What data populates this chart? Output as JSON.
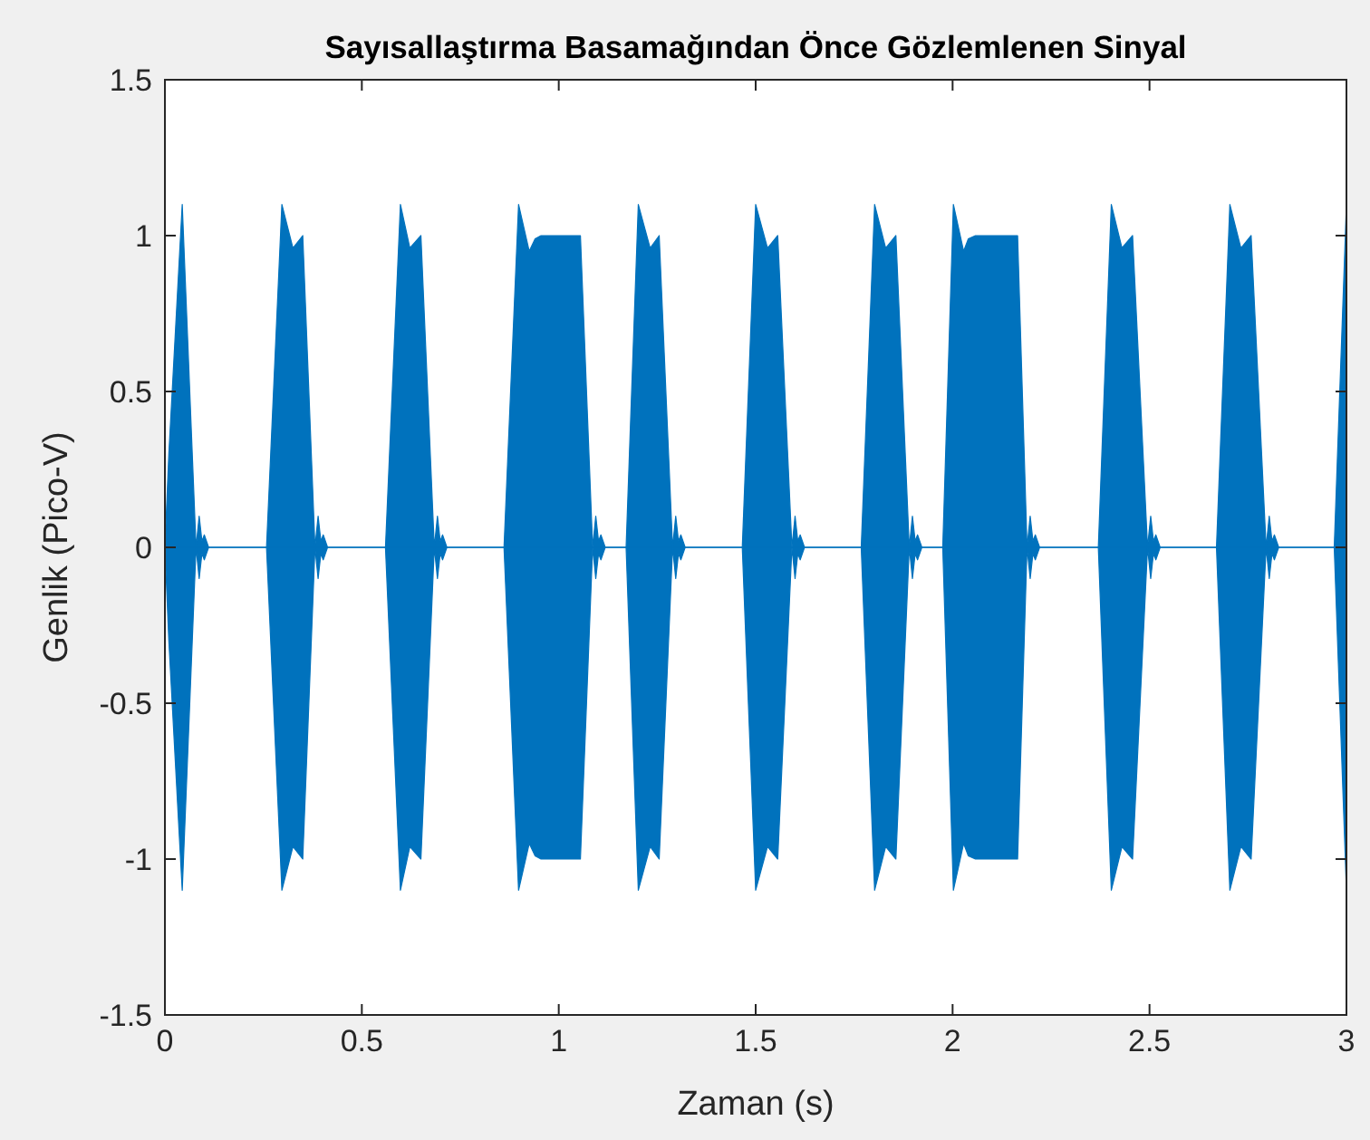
{
  "chart_data": {
    "type": "line",
    "title": "Sayısallaştırma Basamağından Önce Gözlemlenen Sinyal",
    "xlabel": "Zaman (s)",
    "ylabel": "Genlik (Pico-V)",
    "xlim": [
      0,
      3
    ],
    "ylim": [
      -1.5,
      1.5
    ],
    "xticks": [
      0,
      0.5,
      1,
      1.5,
      2,
      2.5,
      3
    ],
    "yticks": [
      -1.5,
      -1,
      -0.5,
      0,
      0.5,
      1,
      1.5
    ],
    "grid": false,
    "series": [
      {
        "color": "#0072bd",
        "x": [
          0,
          0.01,
          0.044,
          0.079,
          0.087,
          0.094,
          0.1,
          0.111,
          0.258,
          0.297,
          0.325,
          0.35,
          0.381,
          0.389,
          0.396,
          0.402,
          0.413,
          0.56,
          0.598,
          0.622,
          0.65,
          0.684,
          0.692,
          0.699,
          0.705,
          0.716,
          0.861,
          0.898,
          0.925,
          0.94,
          0.955,
          1.055,
          1.086,
          1.094,
          1.101,
          1.107,
          1.118,
          1.171,
          1.202,
          1.232,
          1.255,
          1.289,
          1.297,
          1.304,
          1.31,
          1.321,
          1.466,
          1.5,
          1.53,
          1.556,
          1.592,
          1.6,
          1.607,
          1.613,
          1.624,
          1.768,
          1.802,
          1.83,
          1.856,
          1.89,
          1.898,
          1.905,
          1.911,
          1.922,
          1.975,
          2.002,
          2.028,
          2.04,
          2.058,
          2.165,
          2.189,
          2.197,
          2.204,
          2.21,
          2.221,
          2.37,
          2.403,
          2.43,
          2.457,
          2.495,
          2.503,
          2.51,
          2.516,
          2.527,
          2.67,
          2.704,
          2.732,
          2.758,
          2.796,
          2.804,
          2.811,
          2.817,
          2.828,
          2.969,
          3
        ],
        "values": [
          0,
          0,
          0,
          0,
          0,
          0,
          0,
          0,
          0,
          0,
          0,
          0,
          0,
          0,
          0,
          0,
          0,
          0,
          0,
          0,
          0,
          0,
          0,
          0,
          0,
          0,
          0,
          0,
          0,
          0,
          0,
          0,
          0,
          0,
          0,
          0,
          0,
          0,
          0,
          0,
          0,
          0,
          0,
          0,
          0,
          0,
          0,
          0,
          0,
          0,
          0,
          0,
          0,
          0,
          0,
          0,
          0,
          0,
          0,
          0,
          0,
          0,
          0,
          0,
          0,
          0,
          0,
          0,
          0,
          0,
          0,
          0,
          0,
          0,
          0,
          0,
          0,
          0,
          0,
          0,
          0,
          0,
          0,
          0,
          0,
          0,
          0,
          0,
          0,
          0,
          0,
          0,
          0,
          0,
          0
        ],
        "upper": [
          0,
          0.3,
          1.1,
          0,
          0.1,
          0.02,
          0.04,
          0,
          0,
          1.1,
          0.96,
          1,
          0,
          0.1,
          0.02,
          0.04,
          0,
          0,
          1.1,
          0.96,
          1,
          0,
          0.1,
          0.02,
          0.04,
          0,
          0,
          1.1,
          0.95,
          0.99,
          1,
          1,
          0,
          0.1,
          0.02,
          0.04,
          0,
          0,
          1.1,
          0.96,
          1,
          0,
          0.1,
          0.02,
          0.04,
          0,
          0,
          1.1,
          0.96,
          1,
          0,
          0.1,
          0.02,
          0.04,
          0,
          0,
          1.1,
          0.96,
          1,
          0,
          0.1,
          0.02,
          0.04,
          0,
          0,
          1.1,
          0.95,
          0.99,
          1,
          1,
          0,
          0.1,
          0.02,
          0.04,
          0,
          0,
          1.1,
          0.96,
          1,
          0,
          0.1,
          0.02,
          0.04,
          0,
          0,
          1.1,
          0.96,
          1,
          0,
          0.1,
          0.02,
          0.04,
          0,
          0,
          1.1
        ],
        "lower": [
          0,
          -0.3,
          -1.1,
          0,
          -0.1,
          -0.02,
          -0.04,
          0,
          0,
          -1.1,
          -0.96,
          -1,
          0,
          -0.1,
          -0.02,
          -0.04,
          0,
          0,
          -1.1,
          -0.96,
          -1,
          0,
          -0.1,
          -0.02,
          -0.04,
          0,
          0,
          -1.1,
          -0.95,
          -0.99,
          -1,
          -1,
          0,
          -0.1,
          -0.02,
          -0.04,
          0,
          0,
          -1.1,
          -0.96,
          -1,
          0,
          -0.1,
          -0.02,
          -0.04,
          0,
          0,
          -1.1,
          -0.96,
          -1,
          0,
          -0.1,
          -0.02,
          -0.04,
          0,
          0,
          -1.1,
          -0.96,
          -1,
          0,
          -0.1,
          -0.02,
          -0.04,
          0,
          0,
          -1.1,
          -0.95,
          -0.99,
          -1,
          -1,
          0,
          -0.1,
          -0.02,
          -0.04,
          0,
          0,
          -1.1,
          -0.96,
          -1,
          0,
          -0.1,
          -0.02,
          -0.04,
          0,
          0,
          -1.1,
          -0.96,
          -1,
          0,
          -0.1,
          -0.02,
          -0.04,
          0,
          0,
          -1.1
        ]
      }
    ]
  }
}
